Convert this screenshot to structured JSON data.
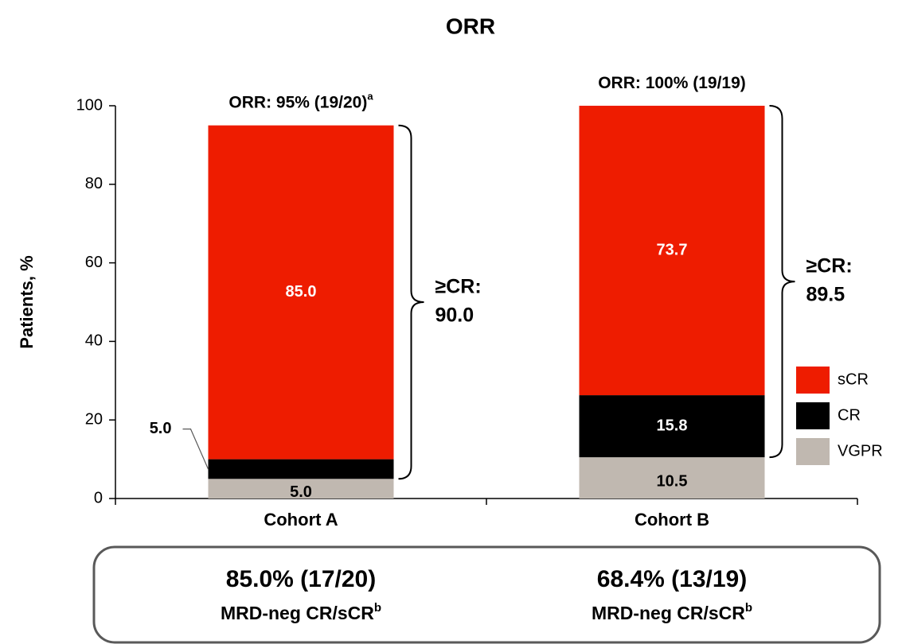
{
  "chart_data": {
    "type": "stacked_bar",
    "title": "ORR",
    "y_label": "Patients, %",
    "categories": [
      "Cohort A",
      "Cohort B"
    ],
    "series": [
      {
        "name": "VGPR",
        "color": "#c0b8b0",
        "text_color": "#000000",
        "values": [
          5.0,
          10.5
        ],
        "value_labels": [
          "5.0",
          "10.5"
        ]
      },
      {
        "name": "CR",
        "color": "#000000",
        "text_color": "#ffffff",
        "values": [
          5.0,
          15.8
        ],
        "value_labels": [
          "5.0",
          "15.8"
        ]
      },
      {
        "name": "sCR",
        "color": "#ee1c00",
        "text_color": "#ffffff",
        "values": [
          85.0,
          73.7
        ],
        "value_labels": [
          "85.0",
          "73.7"
        ]
      }
    ],
    "ylim": [
      0,
      100
    ],
    "yticks": [
      0,
      20,
      40,
      60,
      80,
      100
    ],
    "grid": false,
    "annotations": [
      {
        "orr": "ORR: 95% (19/20)",
        "orr_note": "a",
        "brace_label": "≥CR:",
        "brace_value": "90.0"
      },
      {
        "orr": "ORR: 100% (19/19)",
        "brace_label": "≥CR:",
        "brace_value": "89.5"
      }
    ],
    "summary": [
      {
        "rate": "85.0% (17/20)",
        "label": "MRD-neg CR/sCR",
        "note": "b"
      },
      {
        "rate": "68.4% (13/19)",
        "label": "MRD-neg CR/sCR",
        "note": "b"
      }
    ]
  }
}
